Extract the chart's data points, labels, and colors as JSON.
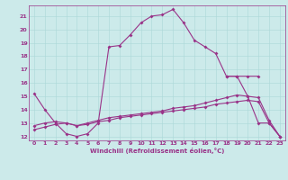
{
  "xlabel": "Windchill (Refroidissement éolien,°C)",
  "background_color": "#cceaea",
  "line_color": "#993388",
  "grid_color": "#aad8d8",
  "xlim": [
    -0.5,
    23.5
  ],
  "ylim": [
    11.7,
    21.8
  ],
  "xticks": [
    0,
    1,
    2,
    3,
    4,
    5,
    6,
    7,
    8,
    9,
    10,
    11,
    12,
    13,
    14,
    15,
    16,
    17,
    18,
    19,
    20,
    21,
    22,
    23
  ],
  "yticks": [
    12,
    13,
    14,
    15,
    16,
    17,
    18,
    19,
    20,
    21
  ],
  "line1_x": [
    0,
    1,
    2,
    3,
    4,
    5,
    6,
    7,
    8,
    9,
    10,
    11,
    12,
    13,
    14,
    15,
    16,
    17,
    18,
    19,
    20,
    21
  ],
  "line1_y": [
    15.2,
    14.0,
    13.0,
    12.2,
    12.0,
    12.2,
    13.0,
    18.7,
    18.8,
    19.6,
    20.5,
    21.0,
    21.1,
    21.5,
    20.5,
    19.2,
    18.7,
    18.2,
    16.5,
    16.5,
    16.5,
    16.5
  ],
  "line2_x": [
    18,
    19,
    20,
    21,
    22,
    23
  ],
  "line2_y": [
    16.5,
    16.5,
    15.0,
    13.0,
    13.0,
    12.0
  ],
  "line3_x": [
    0,
    1,
    2,
    3,
    4,
    5,
    6,
    7,
    8,
    9,
    10,
    11,
    12,
    13,
    14,
    15,
    16,
    17,
    18,
    19,
    20,
    21,
    22,
    23
  ],
  "line3_y": [
    12.8,
    13.0,
    13.1,
    13.0,
    12.8,
    13.0,
    13.2,
    13.4,
    13.5,
    13.6,
    13.7,
    13.8,
    13.9,
    14.1,
    14.2,
    14.3,
    14.5,
    14.7,
    14.9,
    15.1,
    15.0,
    14.9,
    13.2,
    12.0
  ],
  "line4_x": [
    0,
    1,
    2,
    3,
    4,
    5,
    6,
    7,
    8,
    9,
    10,
    11,
    12,
    13,
    14,
    15,
    16,
    17,
    18,
    19,
    20,
    21,
    22,
    23
  ],
  "line4_y": [
    12.5,
    12.7,
    12.9,
    13.0,
    12.8,
    12.9,
    13.1,
    13.2,
    13.4,
    13.5,
    13.6,
    13.7,
    13.8,
    13.9,
    14.0,
    14.1,
    14.2,
    14.4,
    14.5,
    14.6,
    14.7,
    14.6,
    13.0,
    12.0
  ]
}
